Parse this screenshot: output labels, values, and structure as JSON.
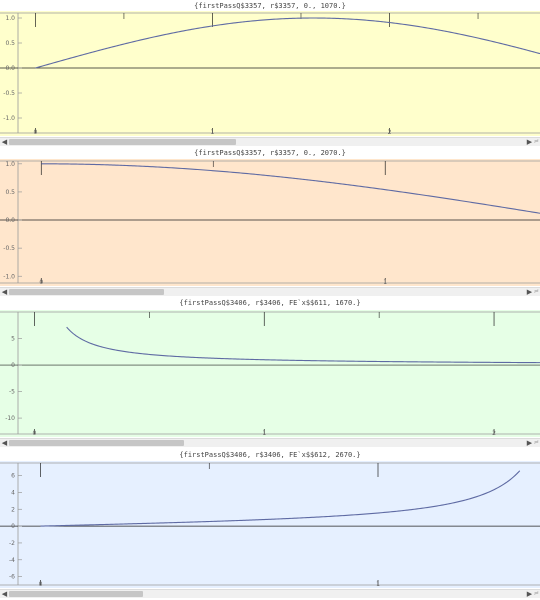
{
  "colors": {
    "axis": "#222222",
    "frame": "#9a9a9a",
    "curve": "#5e6aa3",
    "label": "#666666"
  },
  "plots": [
    {
      "caption": "{firstPassQ$3357, r$3357, 0., 1070.}",
      "background": "#ffffcc",
      "x_range": [
        -0.2,
        2.85
      ],
      "y_range": [
        -1.3,
        1.1
      ],
      "x_ticks": [
        0,
        1,
        2
      ],
      "y_ticks": [
        -1.0,
        -0.5,
        0.0,
        0.5,
        1.0
      ],
      "y_tick_labels": [
        "-1.0",
        "-0.5",
        "0.0",
        "0.5",
        "1.0"
      ],
      "series": {
        "kind": "sin",
        "domain": [
          0,
          2.85
        ]
      },
      "scroll_thumb_fraction": 0.44
    },
    {
      "caption": "{firstPassQ$3357, r$3357, 0., 2070.}",
      "background": "#ffe6cc",
      "x_range": [
        -0.12,
        1.45
      ],
      "y_range": [
        -1.12,
        1.05
      ],
      "x_ticks": [
        0,
        1
      ],
      "y_ticks": [
        -1.0,
        -0.5,
        0.0,
        0.5,
        1.0
      ],
      "y_tick_labels": [
        "-1.0",
        "-0.5",
        "0.0",
        "0.5",
        "1.0"
      ],
      "series": {
        "kind": "cos",
        "domain": [
          0,
          1.45
        ]
      },
      "scroll_thumb_fraction": 0.3
    },
    {
      "caption": "{firstPassQ$3406, r$3406, FE`x$$611, 1670.}",
      "background": "#e6ffe6",
      "x_range": [
        -0.15,
        2.2
      ],
      "y_range": [
        -13.0,
        10.0
      ],
      "x_ticks": [
        0,
        1,
        2
      ],
      "y_ticks": [
        -10,
        -5,
        0,
        5
      ],
      "y_tick_labels": [
        "-10",
        "-5",
        "0",
        "5"
      ],
      "series": {
        "kind": "inverse",
        "domain": [
          0.14,
          2.2
        ]
      },
      "scroll_thumb_fraction": 0.34
    },
    {
      "caption": "{firstPassQ$3406, r$3406, FE`x$$612, 2670.}",
      "background": "#e6f0ff",
      "x_range": [
        -0.12,
        1.48
      ],
      "y_range": [
        -7.0,
        7.5
      ],
      "x_ticks": [
        0,
        1
      ],
      "y_ticks": [
        -6,
        -4,
        -2,
        0,
        2,
        4,
        6
      ],
      "y_tick_labels": [
        "-6",
        "-4",
        "-2",
        "0",
        "2",
        "4",
        "6"
      ],
      "series": {
        "kind": "tan",
        "domain": [
          0,
          1.42
        ]
      },
      "scroll_thumb_fraction": 0.26
    }
  ]
}
